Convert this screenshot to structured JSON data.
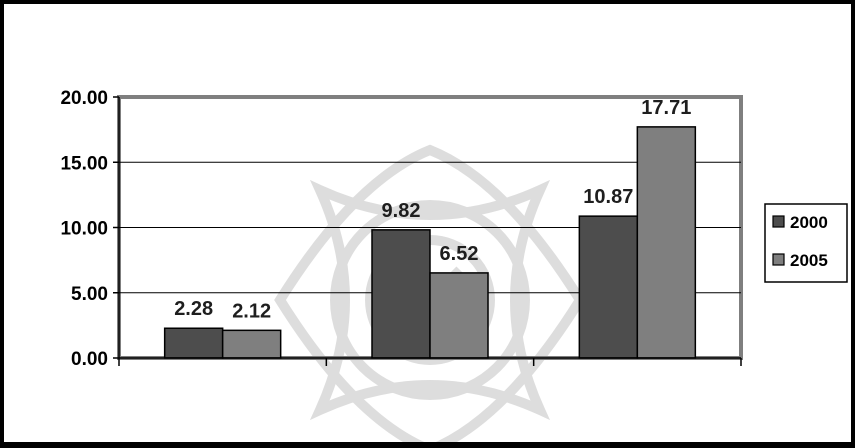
{
  "chart_data": {
    "type": "bar",
    "title": "",
    "xlabel": "",
    "ylabel": "",
    "categories": [
      "",
      "",
      ""
    ],
    "series": [
      {
        "name": "2000",
        "values": [
          2.28,
          9.82,
          10.87
        ],
        "labels": [
          "2.28",
          "9.82",
          "10.87"
        ],
        "color": "#4d4d4d"
      },
      {
        "name": "2005",
        "values": [
          2.12,
          6.52,
          17.71
        ],
        "labels": [
          "2.12",
          "6.52",
          "17.71"
        ],
        "color": "#7f7f7f"
      }
    ],
    "ylim": [
      0,
      20
    ],
    "yticks": [
      0,
      5,
      10,
      15,
      20
    ],
    "ytick_labels": [
      "0.00",
      "5.00",
      "10.00",
      "15.00",
      "20.00"
    ],
    "grid": true,
    "legend_position": "right",
    "watermark": "decorative knot emblem"
  }
}
